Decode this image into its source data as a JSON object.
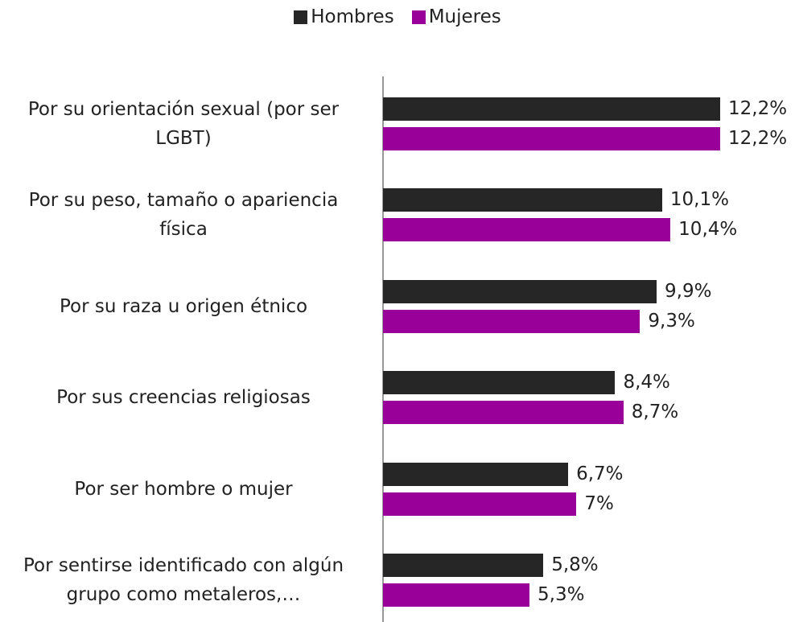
{
  "chart_data": {
    "type": "bar",
    "orientation": "horizontal",
    "categories": [
      "Por su orientación sexual (por ser LGBT)",
      "Por su peso, tamaño o apariencia física",
      "Por su raza u origen étnico",
      "Por sus creencias religiosas",
      "Por ser hombre o mujer",
      "Por sentirse identificado con algún grupo como metaleros,…"
    ],
    "series": [
      {
        "name": "Hombres",
        "color": "#262626",
        "values": [
          12.2,
          10.1,
          9.9,
          8.4,
          6.7,
          5.8
        ],
        "value_labels": [
          "12,2%",
          "10,1%",
          "9,9%",
          "8,4%",
          "6,7%",
          "5,8%"
        ]
      },
      {
        "name": "Mujeres",
        "color": "#990099",
        "values": [
          12.2,
          10.4,
          9.3,
          8.7,
          7,
          5.3
        ],
        "value_labels": [
          "12,2%",
          "10,4%",
          "9,3%",
          "8,7%",
          "7%",
          "5,3%"
        ]
      }
    ],
    "legend": "top"
  }
}
